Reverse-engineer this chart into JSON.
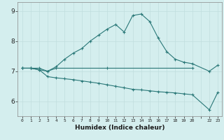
{
  "xlabel": "Humidex (Indice chaleur)",
  "bg_color": "#d4eeee",
  "grid_major_color": "#c0dede",
  "grid_minor_color": "#c8e8e8",
  "line_color": "#2a7878",
  "x_values": [
    0,
    1,
    2,
    3,
    4,
    5,
    6,
    7,
    8,
    9,
    10,
    11,
    12,
    13,
    14,
    15,
    16,
    17,
    18,
    19,
    20,
    22,
    23
  ],
  "line1": [
    7.1,
    7.1,
    7.05,
    7.0,
    7.15,
    7.4,
    7.6,
    7.75,
    8.0,
    8.2,
    8.4,
    8.55,
    8.3,
    8.85,
    8.9,
    8.65,
    8.1,
    7.65,
    7.4,
    7.3,
    7.25,
    7.0,
    7.2
  ],
  "line2_x": [
    0,
    1,
    2,
    3,
    4,
    10,
    20
  ],
  "line2_y": [
    7.1,
    7.1,
    7.1,
    7.0,
    7.1,
    7.1,
    7.1
  ],
  "line3": [
    7.1,
    7.1,
    7.05,
    6.82,
    6.78,
    6.75,
    6.72,
    6.68,
    6.64,
    6.6,
    6.55,
    6.5,
    6.45,
    6.4,
    6.38,
    6.35,
    6.32,
    6.3,
    6.28,
    6.25,
    6.22,
    5.72,
    6.3
  ],
  "ylim": [
    5.5,
    9.3
  ],
  "yticks": [
    6,
    7,
    8,
    9
  ],
  "xlim": [
    -0.5,
    23.5
  ]
}
